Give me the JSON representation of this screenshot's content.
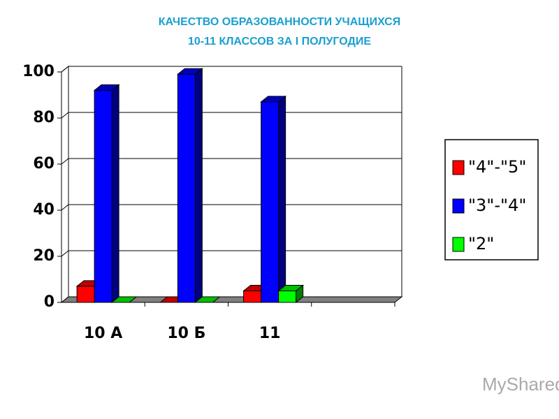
{
  "chart_data": {
    "type": "bar3d",
    "title": "КАЧЕСТВО  ОБРАЗОВАННОСТИ УЧАЩИХСЯ",
    "subtitle": "10-11 КЛАССОВ ЗА I ПОЛУГОДИЕ",
    "categories": [
      "10 А",
      "10 Б",
      "11",
      null
    ],
    "series": [
      {
        "name": "\"4\"-\"5\"",
        "color": "#ff0000",
        "values": [
          7,
          0,
          5,
          null
        ]
      },
      {
        "name": "\"3\"-\"4\"",
        "color": "#0000ff",
        "values": [
          92,
          99,
          87,
          null
        ]
      },
      {
        "name": "\"2\"",
        "color": "#00ff00",
        "values": [
          0,
          0,
          5,
          null
        ]
      }
    ],
    "ylim": [
      0,
      100
    ],
    "yticks": [
      0,
      20,
      40,
      60,
      80,
      100
    ],
    "grid": true,
    "legend": "right"
  },
  "watermark": "MyShared"
}
